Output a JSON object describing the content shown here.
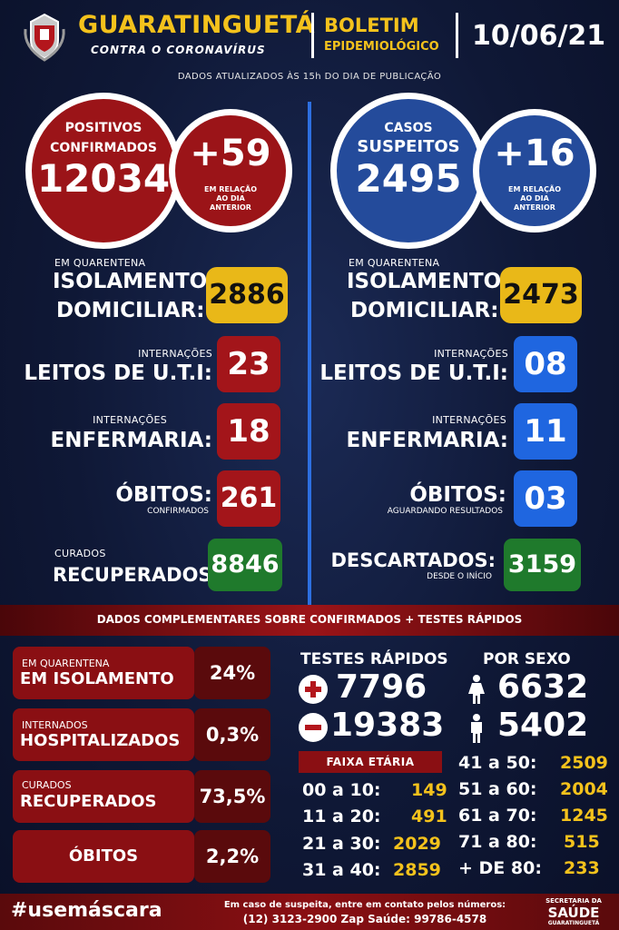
{
  "header": {
    "city": "GUARATINGUETÁ",
    "subtitle": "CONTRA O CORONAVÍRUS",
    "boletim": "BOLETIM",
    "epidemiologico": "EPIDEMIOLÓGICO",
    "date": "10/06/21",
    "update_note": "DADOS ATUALIZADOS ÀS 15h DO DIA DE PUBLICAÇÃO"
  },
  "left": {
    "circle_label1": "POSITIVOS",
    "circle_label2": "CONFIRMADOS",
    "circle_value": "12034",
    "delta_value": "+59",
    "delta_note1": "EM RELAÇÃO",
    "delta_note2": "AO DIA",
    "delta_note3": "ANTERIOR",
    "quar_small": "EM QUARENTENA",
    "quar_big1": "ISOLAMENTO",
    "quar_big2": "DOMICILIAR:",
    "quar_value": "2886",
    "uti_small": "INTERNAÇÕES",
    "uti_big": "LEITOS DE U.T.I:",
    "uti_value": "23",
    "enf_small": "INTERNAÇÕES",
    "enf_big": "ENFERMARIA:",
    "enf_value": "18",
    "obitos_big": "ÓBITOS:",
    "obitos_small": "CONFIRMADOS",
    "obitos_value": "261",
    "cur_small": "CURADOS",
    "cur_big": "RECUPERADOS:",
    "cur_value": "8846"
  },
  "right": {
    "circle_label1": "CASOS",
    "circle_label2": "SUSPEITOS",
    "circle_value": "2495",
    "delta_value": "+16",
    "delta_note1": "EM RELAÇÃO",
    "delta_note2": "AO DIA",
    "delta_note3": "ANTERIOR",
    "quar_small": "EM QUARENTENA",
    "quar_big1": "ISOLAMENTO",
    "quar_big2": "DOMICILIAR:",
    "quar_value": "2473",
    "uti_small": "INTERNAÇÕES",
    "uti_big": "LEITOS DE U.T.I:",
    "uti_value": "08",
    "enf_small": "INTERNAÇÕES",
    "enf_big": "ENFERMARIA:",
    "enf_value": "11",
    "obitos_big": "ÓBITOS:",
    "obitos_small": "AGUARDANDO RESULTADOS",
    "obitos_value": "03",
    "desc_big": "DESCARTADOS:",
    "desc_small": "DESDE O INÍCIO",
    "desc_value": "3159"
  },
  "complementary": {
    "banner": "DADOS COMPLEMENTARES SOBRE CONFIRMADOS + TESTES RÁPIDOS",
    "stats": [
      {
        "small": "EM QUARENTENA",
        "big": "EM ISOLAMENTO",
        "value": "24%"
      },
      {
        "small": "INTERNADOS",
        "big": "HOSPITALIZADOS",
        "value": "0,3%"
      },
      {
        "small": "CURADOS",
        "big": "RECUPERADOS",
        "value": "73,5%"
      },
      {
        "small": "",
        "big": "ÓBITOS",
        "value": "2,2%"
      }
    ],
    "tests_title": "TESTES RÁPIDOS",
    "tests_positive": "7796",
    "tests_negative": "19383",
    "sex_title": "POR SEXO",
    "sex_female": "6632",
    "sex_male": "5402",
    "age_title": "FAIXA ETÁRIA",
    "age_left": [
      {
        "label": "00 a 10:",
        "value": "149"
      },
      {
        "label": "11 a 20:",
        "value": "491"
      },
      {
        "label": "21 a 30:",
        "value": "2029"
      },
      {
        "label": "31 a 40:",
        "value": "2859"
      }
    ],
    "age_right": [
      {
        "label": "41 a 50:",
        "value": "2509"
      },
      {
        "label": "51 a 60:",
        "value": "2004"
      },
      {
        "label": "61 a 70:",
        "value": "1245"
      },
      {
        "label": "71 a 80:",
        "value": "515"
      },
      {
        "label": "+ DE 80:",
        "value": "233"
      }
    ]
  },
  "footer": {
    "hashtag": "#usemáscara",
    "contact1": "Em caso de suspeita, entre em contato pelos números:",
    "contact2": "(12) 3123-2900 Zap Saúde: 99786-4578",
    "dept_small": "SECRETARIA DA",
    "dept_big": "SAÚDE",
    "dept_city": "GUARATINGUETÁ"
  },
  "colors": {
    "red": "#9b1418",
    "blue": "#244b9b",
    "yellow": "#e9b818",
    "green": "#1f7a2c",
    "bright_blue": "#1f66e0"
  }
}
